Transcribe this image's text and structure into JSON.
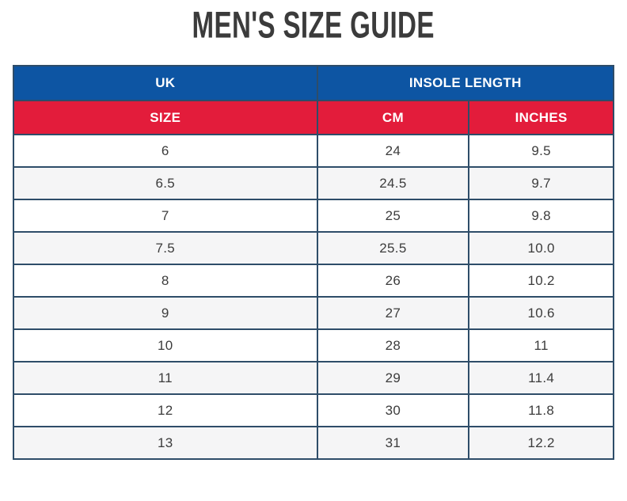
{
  "title": "MEN'S SIZE GUIDE",
  "table": {
    "group_headers": [
      {
        "label": "UK",
        "colspan": 1
      },
      {
        "label": "INSOLE LENGTH",
        "colspan": 2
      }
    ],
    "column_headers": [
      "SIZE",
      "CM",
      "INCHES"
    ],
    "rows": [
      [
        "6",
        "24",
        "9.5"
      ],
      [
        "6.5",
        "24.5",
        "9.7"
      ],
      [
        "7",
        "25",
        "9.8"
      ],
      [
        "7.5",
        "25.5",
        "10.0"
      ],
      [
        "8",
        "26",
        "10.2"
      ],
      [
        "9",
        "27",
        "10.6"
      ],
      [
        "10",
        "28",
        "11"
      ],
      [
        "11",
        "29",
        "11.4"
      ],
      [
        "12",
        "30",
        "11.8"
      ],
      [
        "13",
        "31",
        "12.2"
      ]
    ]
  },
  "chart_data": {
    "type": "table",
    "title": "MEN'S SIZE GUIDE",
    "group_headers": [
      "UK",
      "INSOLE LENGTH"
    ],
    "columns": [
      "SIZE",
      "CM",
      "INCHES"
    ],
    "rows": [
      [
        "6",
        "24",
        "9.5"
      ],
      [
        "6.5",
        "24.5",
        "9.7"
      ],
      [
        "7",
        "25",
        "9.8"
      ],
      [
        "7.5",
        "25.5",
        "10.0"
      ],
      [
        "8",
        "26",
        "10.2"
      ],
      [
        "9",
        "27",
        "10.6"
      ],
      [
        "10",
        "28",
        "11"
      ],
      [
        "11",
        "29",
        "11.4"
      ],
      [
        "12",
        "30",
        "11.8"
      ],
      [
        "13",
        "31",
        "12.2"
      ]
    ]
  },
  "colors": {
    "group_header_bg": "#0d55a3",
    "column_header_bg": "#e31c3b",
    "border": "#2e4d69",
    "alt_row_bg": "#f5f5f6",
    "title_text": "#3b3b3b",
    "cell_text": "#3c3c3c",
    "header_text": "#ffffff"
  }
}
